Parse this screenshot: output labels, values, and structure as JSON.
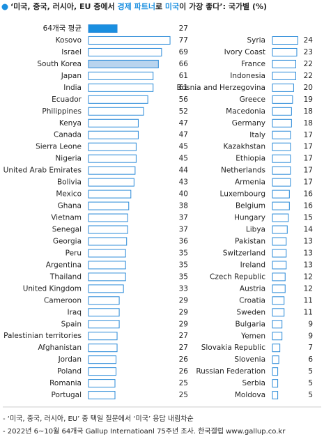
{
  "chart_data": {
    "type": "bar",
    "title_parts": [
      "‘미국, 중국, 러시아, EU 중에서 ",
      "경제 파트너",
      "로 ",
      "미국",
      "이 가장 좋다’: 국가별 (%)"
    ],
    "title_highlight_color": "#1a8fe0",
    "color": "#2a8ad8",
    "xlim": [
      0,
      80
    ],
    "panels": [
      {
        "categories": [
          "64개국 평균",
          "Kosovo",
          "Israel",
          "South Korea",
          "Japan",
          "India",
          "Ecuador",
          "Philippines",
          "Kenya",
          "Canada",
          "Sierra Leone",
          "Nigeria",
          "United Arab Emirates",
          "Bolivia",
          "Mexico",
          "Ghana",
          "Vietnam",
          "Senegal",
          "Georgia",
          "Peru",
          "Argentina",
          "Thailand",
          "United Kingdom",
          "Cameroon",
          "Iraq",
          "Spain",
          "Palestinian territories",
          "Afghanistan",
          "Jordan",
          "Poland",
          "Romania",
          "Portugal"
        ],
        "values": [
          27,
          77,
          69,
          66,
          61,
          61,
          56,
          52,
          47,
          47,
          45,
          45,
          44,
          43,
          40,
          38,
          37,
          37,
          36,
          35,
          35,
          35,
          33,
          29,
          29,
          29,
          27,
          27,
          26,
          26,
          25,
          25
        ],
        "highlight": [
          {
            "index": 0,
            "color": "#1a8fe0"
          },
          {
            "index": 3,
            "color": "#b9d4ee"
          }
        ]
      },
      {
        "categories": [
          "Syria",
          "Ivory Coast",
          "France",
          "Indonesia",
          "Bosnia and Herzegovina",
          "Greece",
          "Macedonia",
          "Germany",
          "Italy",
          "Kazakhstan",
          "Ethiopia",
          "Netherlands",
          "Armenia",
          "Luxembourg",
          "Belgium",
          "Hungary",
          "Libya",
          "Pakistan",
          "Switzerland",
          "Ireland",
          "Czech Republic",
          "Austria",
          "Croatia",
          "Sweden",
          "Bulgaria",
          "Yemen",
          "Slovakia Republic",
          "Slovenia",
          "Russian Federation",
          "Serbia",
          "Moldova"
        ],
        "values": [
          24,
          23,
          22,
          22,
          20,
          19,
          18,
          18,
          17,
          17,
          17,
          17,
          17,
          16,
          16,
          15,
          14,
          13,
          13,
          13,
          12,
          12,
          11,
          11,
          9,
          9,
          7,
          6,
          5,
          5,
          5
        ],
        "highlight": []
      }
    ],
    "notes": [
      "- ‘미국, 중국, 러시아, EU’ 중 택일 질문에서 ‘미국’ 응답 내림차순",
      "- 2022년 6~10월 64개국 Gallup Internatioanl 75주년 조사. 한국갤럽 www.gallup.co.kr"
    ]
  }
}
